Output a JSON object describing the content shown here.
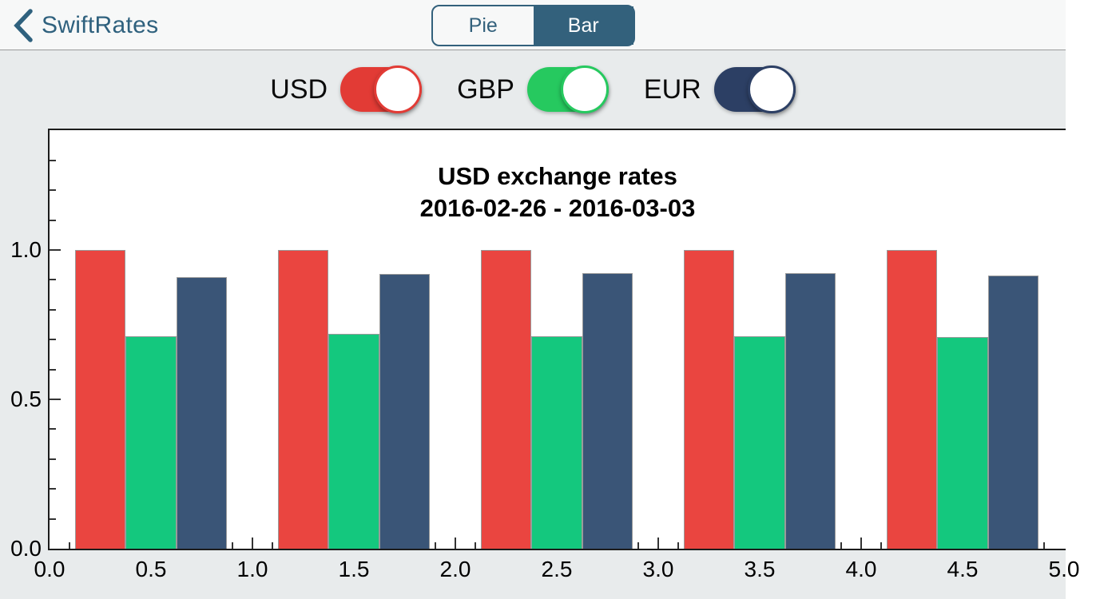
{
  "nav": {
    "back_label": "SwiftRates",
    "segments": [
      {
        "label": "Pie",
        "selected": false
      },
      {
        "label": "Bar",
        "selected": true
      }
    ]
  },
  "toggles": [
    {
      "label": "USD",
      "color": "#E23B35",
      "on": true
    },
    {
      "label": "GBP",
      "color": "#26C95F",
      "on": true
    },
    {
      "label": "EUR",
      "color": "#2C3F64",
      "on": true
    }
  ],
  "chart_data": {
    "type": "bar",
    "title": "USD exchange rates",
    "subtitle": "2016-02-26 - 2016-03-03",
    "categories": [
      0,
      1,
      2,
      3,
      4
    ],
    "series": [
      {
        "name": "USD",
        "color": "#EA4540",
        "values": [
          1.0,
          1.0,
          1.0,
          1.0,
          1.0
        ]
      },
      {
        "name": "GBP",
        "color": "#14C87E",
        "values": [
          0.712,
          0.72,
          0.712,
          0.71,
          0.708
        ]
      },
      {
        "name": "EUR",
        "color": "#3A5577",
        "values": [
          0.91,
          0.919,
          0.922,
          0.923,
          0.915
        ]
      }
    ],
    "xlim": [
      0,
      5.008
    ],
    "ylim": [
      0,
      1.401
    ],
    "grid": false,
    "legend_position": "none",
    "xticks": {
      "values": [
        0,
        0.5,
        1.0,
        1.5,
        2.0,
        2.5,
        3.0,
        3.5,
        4.0,
        4.5,
        5.0
      ],
      "labels": [
        "0.0",
        "0.5",
        "1.0",
        "1.5",
        "2.0",
        "2.5",
        "3.0",
        "3.5",
        "4.0",
        "4.5",
        "5.0"
      ]
    },
    "yticks": {
      "values": [
        0,
        0.5,
        1.0
      ],
      "labels": [
        "0.0",
        "0.5",
        "1.0"
      ]
    },
    "minor_tick_step": 0.1,
    "bar_width": 0.25,
    "group_offset": 0.125
  }
}
